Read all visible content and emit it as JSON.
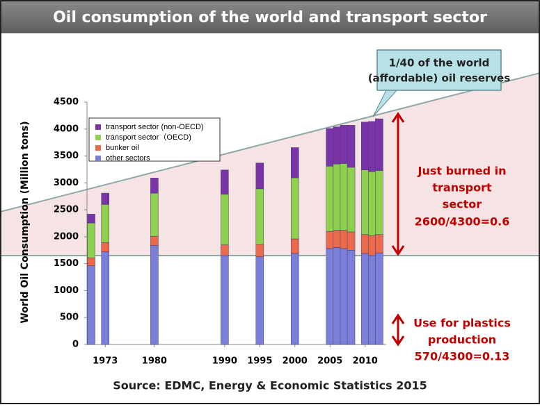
{
  "chart_data": {
    "type": "bar",
    "stacked": true,
    "title": "Oil consumption of the world and transport sector",
    "y_label": "World Oil Consumption  (Million tons)",
    "source": "Source: EDMC, Energy & Economic Statistics 2015",
    "x": [
      1971,
      1973,
      1980,
      1990,
      1995,
      2000,
      2005,
      2006,
      2007,
      2008,
      2010,
      2011,
      2012
    ],
    "xlim": [
      1970.4,
      2013
    ],
    "xticks": [
      1973,
      1980,
      1990,
      1995,
      2000,
      2005,
      2010
    ],
    "ylim": [
      0,
      4500
    ],
    "yticks": [
      0,
      500,
      1000,
      1500,
      2000,
      2500,
      3000,
      3500,
      4000,
      4500
    ],
    "grid": false,
    "legend": "upper left",
    "series": [
      {
        "name": "other sectors",
        "color": "#7b7fd8",
        "values": [
          1460,
          1720,
          1840,
          1650,
          1630,
          1690,
          1780,
          1800,
          1780,
          1750,
          1690,
          1650,
          1700
        ]
      },
      {
        "name": "bunker oil",
        "color": "#ec6a4c",
        "values": [
          150,
          175,
          170,
          200,
          230,
          270,
          320,
          320,
          340,
          340,
          350,
          370,
          340
        ]
      },
      {
        "name": "transport sector（OECD)",
        "color": "#8fd14f",
        "values": [
          645,
          705,
          800,
          940,
          1030,
          1135,
          1210,
          1230,
          1240,
          1200,
          1200,
          1190,
          1190
        ]
      },
      {
        "name": "transport sector (non-OECD)",
        "color": "#7a34a8",
        "values": [
          165,
          210,
          280,
          450,
          480,
          560,
          700,
          690,
          710,
          780,
          890,
          930,
          960
        ]
      }
    ],
    "annotations": {
      "reserves": [
        "1/40 of the world",
        "(affordable) oil reserves"
      ],
      "transport": [
        "Just burned in",
        "transport",
        "sector",
        "2600/4300=0.6"
      ],
      "plastics": [
        "Use for plastics",
        "production",
        "570/4300=0.13"
      ]
    }
  }
}
